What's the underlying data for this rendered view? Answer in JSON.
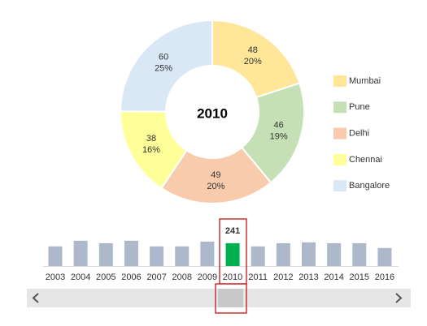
{
  "chart_data": [
    {
      "type": "donut",
      "center_label": "2010",
      "categories": [
        "Mumbai",
        "Pune",
        "Delhi",
        "Chennai",
        "Bangalore"
      ],
      "values": [
        48,
        46,
        49,
        38,
        60
      ],
      "percent_labels": [
        "20%",
        "19%",
        "20%",
        "16%",
        "25%"
      ],
      "colors": [
        "#ffe699",
        "#c5e0b4",
        "#f8cbad",
        "#ffff99",
        "#dae7f5"
      ]
    },
    {
      "type": "bar",
      "categories": [
        "2003",
        "2004",
        "2005",
        "2006",
        "2007",
        "2008",
        "2009",
        "2010",
        "2011",
        "2012",
        "2013",
        "2014",
        "2015",
        "2016"
      ],
      "values": [
        207,
        267,
        241,
        267,
        207,
        207,
        258,
        241,
        207,
        241,
        250,
        241,
        241,
        190
      ],
      "value_labels": [
        null,
        null,
        null,
        null,
        null,
        null,
        null,
        "241",
        null,
        null,
        null,
        null,
        null,
        null
      ],
      "colors": [
        "#adb9ca",
        "#adb9ca",
        "#adb9ca",
        "#adb9ca",
        "#adb9ca",
        "#adb9ca",
        "#adb9ca",
        "#00b050",
        "#adb9ca",
        "#adb9ca",
        "#adb9ca",
        "#adb9ca",
        "#adb9ca",
        "#adb9ca"
      ],
      "ylim": [
        0,
        300
      ]
    }
  ]
}
